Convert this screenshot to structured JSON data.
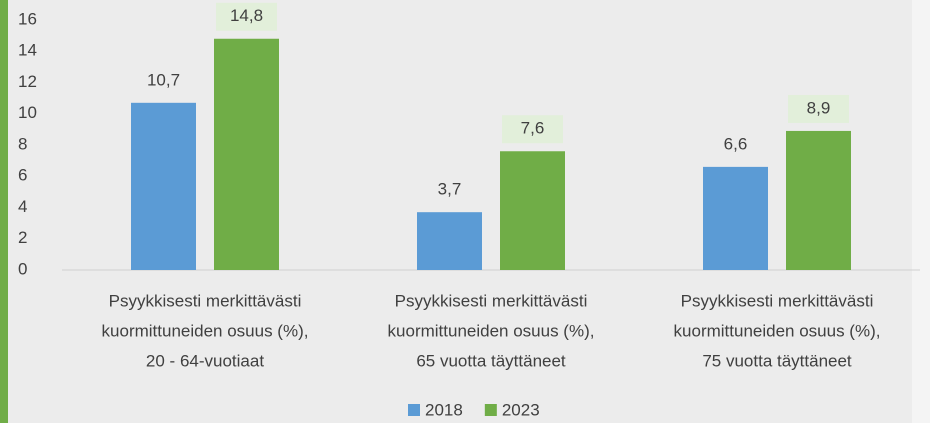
{
  "chart_data": {
    "type": "bar",
    "categories": [
      [
        "Psyykkisesti merkittävästi",
        "kuormittuneiden osuus (%),",
        "20 - 64-vuotiaat"
      ],
      [
        "Psyykkisesti merkittävästi",
        "kuormittuneiden osuus (%),",
        "65 vuotta täyttäneet"
      ],
      [
        "Psyykkisesti merkittävästi",
        "kuormittuneiden osuus (%),",
        "75 vuotta täyttäneet"
      ]
    ],
    "series": [
      {
        "name": "2018",
        "color": "#5b9bd5",
        "values": [
          10.7,
          3.7,
          6.6
        ],
        "value_labels": [
          "10,7",
          "3,7",
          "6,6"
        ],
        "label_background": null
      },
      {
        "name": "2023",
        "color": "#70ad47",
        "values": [
          14.8,
          7.6,
          8.9
        ],
        "value_labels": [
          "14,8",
          "7,6",
          "8,9"
        ],
        "label_background": "#e2efda"
      }
    ],
    "ylim": [
      0,
      16
    ],
    "yticks": [
      0,
      2,
      4,
      6,
      8,
      10,
      12,
      14,
      16
    ],
    "grid": false,
    "legend": "bottom"
  }
}
